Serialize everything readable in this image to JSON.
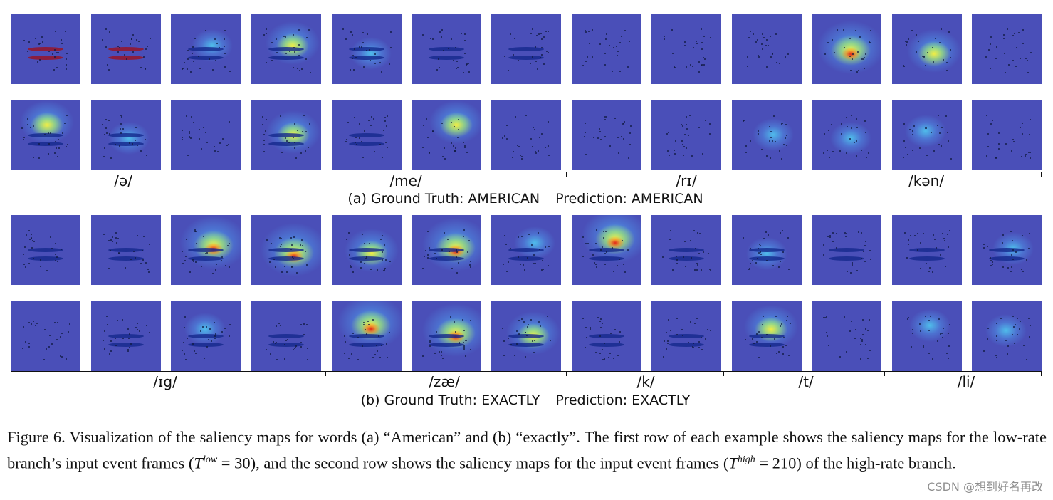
{
  "panel_a": {
    "segments": [
      "/ə/",
      "/me/",
      "/rɪ/",
      "/kən/"
    ],
    "label_prefix": "(a) Ground Truth: AMERICAN",
    "label_prediction": "Prediction: AMERICAN"
  },
  "panel_b": {
    "segments": [
      "/ɪg/",
      "/zæ/",
      "/k/",
      "/t/",
      "/li/"
    ],
    "label_prefix": "(b) Ground Truth: EXACTLY",
    "label_prediction": "Prediction: EXACTLY"
  },
  "caption": {
    "part1": "Figure 6. Visualization of the saliency maps for words (a) “American” and (b) “exactly”. The first row of each example shows the saliency maps for the low-rate branch’s input event frames (",
    "sym1": "T",
    "sup1": "low",
    "eq1": " = 30",
    "part2": "), and the second row shows the saliency maps for the input event frames (",
    "sym2": "T",
    "sup2": "high",
    "eq2": " = 210",
    "part3": ") of the high-rate branch."
  },
  "watermark": "CSDN @想到好名再改",
  "colors": {
    "background_tile": "#4a4fb8",
    "axis": "#111111"
  }
}
